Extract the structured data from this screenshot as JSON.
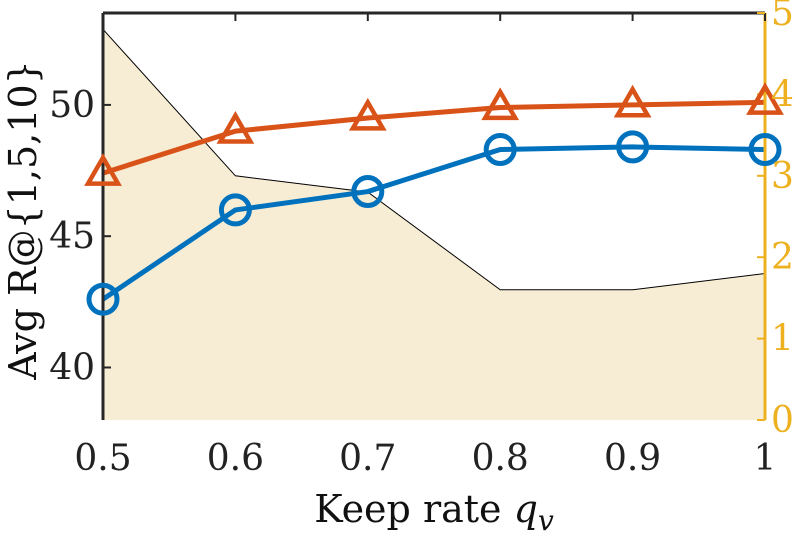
{
  "chart_data": {
    "type": "line",
    "xlabel": "Keep rate ",
    "xlabel_var": "q",
    "xlabel_sub": "v",
    "ylabel": "Avg R@{1,5,10}",
    "x": [
      0.5,
      0.6,
      0.7,
      0.8,
      0.9,
      1.0
    ],
    "x_tick_labels": [
      "0.5",
      "0.6",
      "0.7",
      "0.8",
      "0.9",
      "1"
    ],
    "xlim": [
      0.5,
      1.0
    ],
    "ylim": [
      38,
      53.5
    ],
    "y_ticks": [
      40,
      45,
      50
    ],
    "y_tick_labels": [
      "40",
      "45",
      "50"
    ],
    "y2lim": [
      0,
      5
    ],
    "y2_ticks": [
      0,
      1,
      2,
      3,
      4,
      5
    ],
    "y2_tick_labels": [
      "0",
      "1",
      "2",
      "3",
      "4",
      "5"
    ],
    "series": [
      {
        "values": [
          42.6,
          46.0,
          46.7,
          48.3,
          48.4,
          48.3
        ],
        "marker": "circle",
        "color": "#0072BD",
        "axis": "left"
      },
      {
        "values": [
          47.4,
          49.0,
          49.5,
          49.9,
          50.0,
          50.1
        ],
        "marker": "triangle",
        "color": "#D95319",
        "axis": "left"
      },
      {
        "values": [
          4.8,
          3.0,
          2.8,
          1.6,
          1.6,
          1.8
        ],
        "type": "area",
        "color": "#F7EDD5",
        "axis": "right"
      }
    ],
    "right_axis_color": "#EDB120",
    "grid": false,
    "legend": "none"
  }
}
